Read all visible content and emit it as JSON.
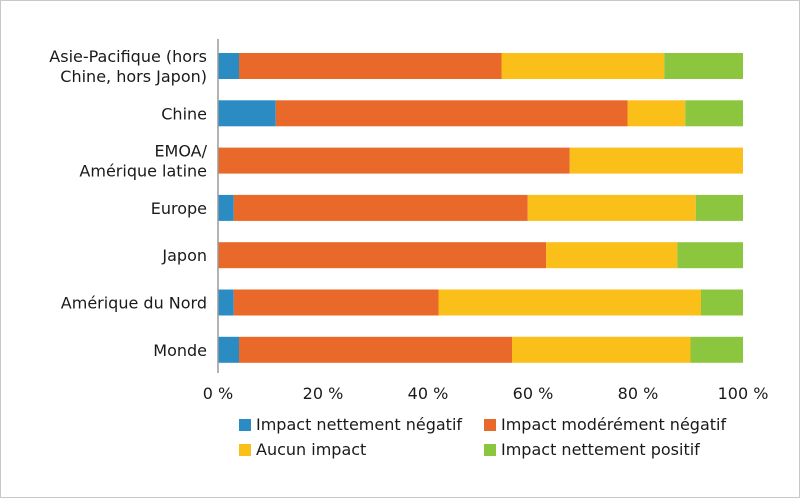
{
  "chart_data": {
    "type": "bar",
    "orientation": "horizontal",
    "stacked": true,
    "categories": [
      "Asie-Pacifique (hors Chine, hors Japon)",
      "Chine",
      "EMOA/ Amérique latine",
      "Europe",
      "Japon",
      "Amérique du Nord",
      "Monde"
    ],
    "category_lines": [
      [
        "Asie-Pacifique (hors",
        "Chine, hors Japon)"
      ],
      [
        "Chine"
      ],
      [
        "EMOA/",
        "Amérique latine"
      ],
      [
        "Europe"
      ],
      [
        "Japon"
      ],
      [
        "Amérique du Nord"
      ],
      [
        "Monde"
      ]
    ],
    "series": [
      {
        "name": "Impact nettement négatif",
        "color": "#2b8cc4",
        "values": [
          4,
          11,
          0,
          3,
          0,
          3,
          4
        ]
      },
      {
        "name": "Impact modérément négatif",
        "color": "#e8692a",
        "values": [
          50,
          67,
          67,
          56,
          62.5,
          39,
          52
        ]
      },
      {
        "name": "Aucun impact",
        "color": "#fbbf1a",
        "values": [
          31,
          11,
          33,
          32,
          25,
          50,
          34
        ]
      },
      {
        "name": "Impact nettement positif",
        "color": "#8cc63f",
        "values": [
          15,
          11,
          0,
          9,
          12.5,
          8,
          10
        ]
      }
    ],
    "xlim": [
      0,
      100
    ],
    "x_ticks": [
      "0 %",
      "20 %",
      "40 %",
      "60 %",
      "80 %",
      "100 %"
    ],
    "x_tick_values": [
      0,
      20,
      40,
      60,
      80,
      100
    ],
    "grid": false,
    "legend_position": "bottom"
  }
}
